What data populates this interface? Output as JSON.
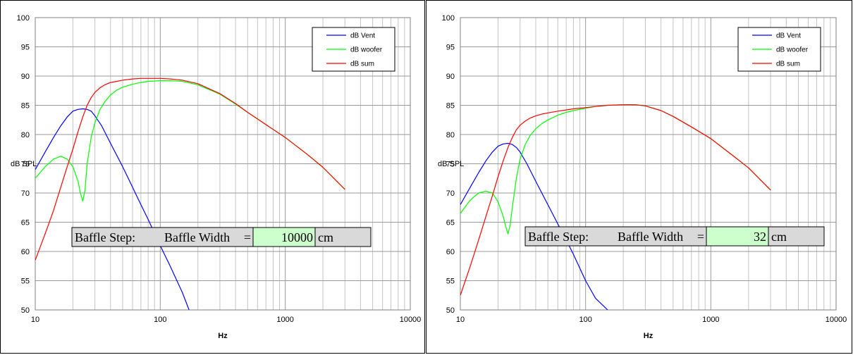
{
  "chart_data": [
    {
      "type": "line",
      "xscale": "log",
      "xlim": [
        10,
        10000
      ],
      "ylim": [
        50,
        100
      ],
      "xticks": [
        "10",
        "100",
        "1000",
        "10000"
      ],
      "yticks": [
        "50",
        "55",
        "60",
        "65",
        "70",
        "75",
        "80",
        "85",
        "90",
        "95",
        "100"
      ],
      "xlabel": "Hz",
      "ylabel": "dB SPL",
      "grid": true,
      "legend": "top-right",
      "series": [
        {
          "name": "dB Vent",
          "color": "#0000ff",
          "x": [
            10,
            12,
            14,
            16,
            18,
            20,
            22,
            24,
            26,
            28,
            30,
            34,
            40,
            50,
            60,
            70,
            80,
            100,
            120,
            150,
            170
          ],
          "y": [
            74,
            77,
            79.5,
            81.5,
            83,
            84,
            84.3,
            84.4,
            84.3,
            84,
            83.2,
            81.5,
            78.5,
            74.5,
            71,
            68,
            65.5,
            61,
            57.5,
            53,
            50
          ]
        },
        {
          "name": "dB woofer",
          "color": "#00ff00",
          "x": [
            10,
            12,
            14,
            16,
            18,
            20,
            22,
            23,
            24,
            25,
            26,
            28,
            30,
            33,
            36,
            40,
            45,
            50,
            60,
            70,
            80,
            100,
            120,
            150,
            200,
            300,
            400,
            500,
            700,
            1000,
            1500,
            2000,
            3000
          ],
          "y": [
            72.5,
            74.5,
            75.8,
            76.3,
            75.8,
            74.5,
            72,
            70,
            68.6,
            70.5,
            75,
            79.5,
            82,
            84.3,
            85.6,
            86.8,
            87.6,
            88.1,
            88.6,
            88.9,
            89.1,
            89.2,
            89.2,
            89.1,
            88.5,
            86.9,
            85.2,
            83.8,
            81.7,
            79.5,
            76.6,
            74.4,
            70.6
          ]
        },
        {
          "name": "dB sum",
          "color": "#ff0000",
          "x": [
            10,
            12,
            14,
            16,
            18,
            20,
            22,
            24,
            26,
            28,
            30,
            33,
            36,
            40,
            45,
            50,
            60,
            70,
            80,
            100,
            120,
            150,
            200,
            300,
            400,
            500,
            700,
            1000,
            1500,
            2000,
            3000
          ],
          "y": [
            58.5,
            63,
            67,
            71,
            74.5,
            77.5,
            80.5,
            83,
            85,
            86.3,
            87.2,
            88,
            88.5,
            88.9,
            89.1,
            89.3,
            89.5,
            89.6,
            89.6,
            89.6,
            89.5,
            89.3,
            88.7,
            87,
            85.3,
            83.8,
            81.7,
            79.5,
            76.6,
            74.4,
            70.6
          ]
        }
      ],
      "annotation": {
        "label": "Baffle Step:",
        "field_label": "Baffle Width",
        "eq": "=",
        "value": "10000",
        "unit": "cm"
      }
    },
    {
      "type": "line",
      "xscale": "log",
      "xlim": [
        10,
        10000
      ],
      "ylim": [
        50,
        100
      ],
      "xticks": [
        "10",
        "100",
        "1000",
        "10000"
      ],
      "yticks": [
        "50",
        "55",
        "60",
        "65",
        "70",
        "75",
        "80",
        "85",
        "90",
        "95",
        "100"
      ],
      "xlabel": "Hz",
      "ylabel": "dB SPL",
      "grid": true,
      "legend": "top-right",
      "series": [
        {
          "name": "dB Vent",
          "color": "#0000ff",
          "x": [
            10,
            12,
            14,
            16,
            18,
            20,
            22,
            24,
            26,
            28,
            30,
            34,
            40,
            50,
            60,
            70,
            80,
            100,
            120,
            150
          ],
          "y": [
            68,
            71,
            73.5,
            75.5,
            77,
            78,
            78.4,
            78.5,
            78.3,
            77.8,
            77,
            75,
            72,
            68,
            64.7,
            62,
            59.5,
            55,
            52,
            50
          ]
        },
        {
          "name": "dB woofer",
          "color": "#00ff00",
          "x": [
            10,
            12,
            14,
            16,
            18,
            20,
            22,
            23,
            24,
            25,
            26,
            28,
            30,
            33,
            36,
            40,
            45,
            50,
            60,
            70,
            80,
            100,
            120,
            150,
            200,
            250,
            300,
            400,
            500,
            700,
            1000,
            1500,
            2000,
            3000
          ],
          "y": [
            66.5,
            68.8,
            70,
            70.3,
            70,
            68.5,
            66,
            64.3,
            63,
            64.5,
            67.5,
            72.5,
            75.8,
            78.3,
            79.8,
            81,
            81.9,
            82.5,
            83.3,
            83.8,
            84.1,
            84.5,
            84.8,
            85,
            85.1,
            85.1,
            84.9,
            84.1,
            83.1,
            81.3,
            79.3,
            76.4,
            74.3,
            70.5
          ]
        },
        {
          "name": "dB sum",
          "color": "#ff0000",
          "x": [
            10,
            12,
            14,
            16,
            18,
            20,
            22,
            24,
            26,
            28,
            30,
            33,
            36,
            40,
            45,
            50,
            60,
            70,
            80,
            100,
            120,
            150,
            200,
            250,
            300,
            400,
            500,
            700,
            1000,
            1500,
            2000,
            3000
          ],
          "y": [
            52.5,
            57.5,
            62,
            66,
            69.5,
            72.8,
            75.5,
            77.8,
            79.5,
            80.8,
            81.6,
            82.3,
            82.8,
            83.2,
            83.5,
            83.7,
            84,
            84.2,
            84.4,
            84.6,
            84.8,
            85,
            85.1,
            85.1,
            84.9,
            84.1,
            83.1,
            81.3,
            79.3,
            76.4,
            74.3,
            70.5
          ]
        }
      ],
      "annotation": {
        "label": "Baffle Step:",
        "field_label": "Baffle Width",
        "eq": "=",
        "value": "32",
        "unit": "cm"
      }
    }
  ]
}
